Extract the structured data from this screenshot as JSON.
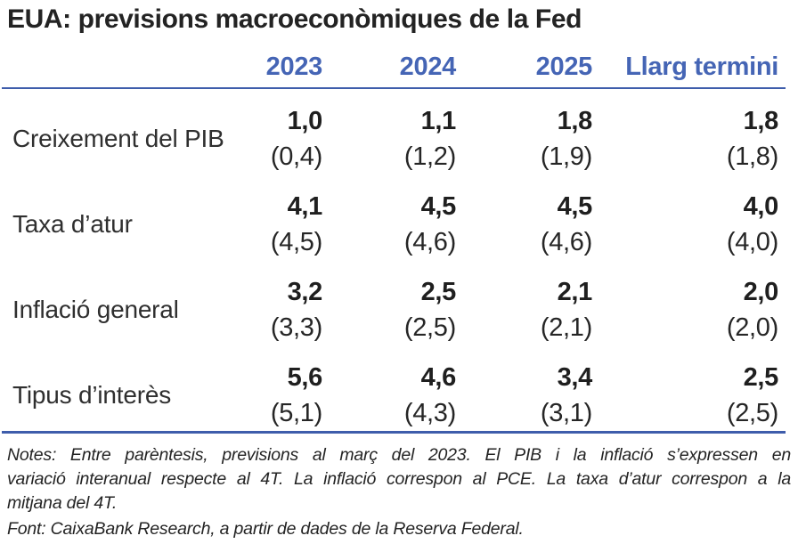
{
  "title": "EUA: previsions macroeconòmiques de la Fed",
  "table": {
    "columns": [
      "2023",
      "2024",
      "2025",
      "Llarg termini"
    ],
    "rows": [
      {
        "label": "Creixement del PIB",
        "values": [
          "1,0",
          "1,1",
          "1,8",
          "1,8"
        ],
        "prev": [
          "(0,4)",
          "(1,2)",
          "(1,9)",
          "(1,8)"
        ]
      },
      {
        "label": "Taxa d’atur",
        "values": [
          "4,1",
          "4,5",
          "4,5",
          "4,0"
        ],
        "prev": [
          "(4,5)",
          "(4,6)",
          "(4,6)",
          "(4,0)"
        ]
      },
      {
        "label": "Inflació general",
        "values": [
          "3,2",
          "2,5",
          "2,1",
          "2,0"
        ],
        "prev": [
          "(3,3)",
          "(2,5)",
          "(2,1)",
          "(2,0)"
        ]
      },
      {
        "label": "Tipus d’interès",
        "values": [
          "5,6",
          "4,6",
          "3,4",
          "2,5"
        ],
        "prev": [
          "(5,1)",
          "(4,3)",
          "(3,1)",
          "(2,5)"
        ]
      }
    ]
  },
  "notes_lines": [
    "Notes: Entre parèntesis, previsions al març del 2023. El PIB i la inflació s’expressen en",
    "variació interanual respecte al 4T. La inflació correspon al PCE. La taxa d’atur correspon a la",
    "mitjana del 4T."
  ],
  "source": "Font: CaixaBank Research, a partir de dades de la Reserva Federal.",
  "colors": {
    "accent_blue_text": "#4565b5",
    "rule_blue": "#3e5dab",
    "title_dark": "#232323",
    "body_dark": "#262626"
  },
  "chart_data": {
    "type": "table",
    "title": "EUA: previsions macroeconòmiques de la Fed",
    "columns": [
      "2023",
      "2024",
      "2025",
      "Llarg termini"
    ],
    "rows": [
      {
        "label": "Creixement del PIB",
        "current": [
          1.0,
          1.1,
          1.8,
          1.8
        ],
        "previsions_marc_2023": [
          0.4,
          1.2,
          1.9,
          1.8
        ]
      },
      {
        "label": "Taxa d’atur",
        "current": [
          4.1,
          4.5,
          4.5,
          4.0
        ],
        "previsions_marc_2023": [
          4.5,
          4.6,
          4.6,
          4.0
        ]
      },
      {
        "label": "Inflació general",
        "current": [
          3.2,
          2.5,
          2.1,
          2.0
        ],
        "previsions_marc_2023": [
          3.3,
          2.5,
          2.1,
          2.0
        ]
      },
      {
        "label": "Tipus d’interès",
        "current": [
          5.6,
          4.6,
          3.4,
          2.5
        ],
        "previsions_marc_2023": [
          5.1,
          4.3,
          3.1,
          2.5
        ]
      }
    ],
    "notes": "Notes: Entre parèntesis, previsions al març del 2023. El PIB i la inflació s’expressen en variació interanual respecte al 4T. La inflació correspon al PCE. La taxa d’atur correspon a la mitjana del 4T.",
    "source": "Font: CaixaBank Research, a partir de dades de la Reserva Federal."
  }
}
